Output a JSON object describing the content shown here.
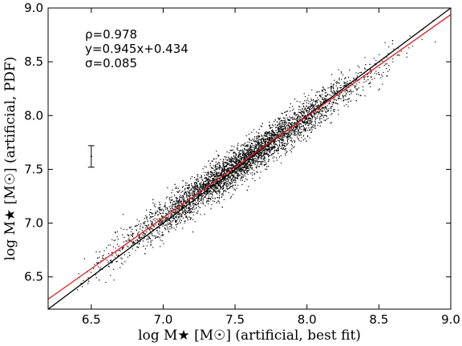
{
  "chart_data": {
    "type": "scatter",
    "xlabel": "log M★ [M☉] (artificial, best fit)",
    "ylabel": "log M★ [M☉] (artificial, PDF)",
    "xlim": [
      6.2,
      9.0
    ],
    "ylim": [
      6.2,
      9.0
    ],
    "xticks": [
      "6.5",
      "7.0",
      "7.5",
      "8.0",
      "8.5",
      "9.0"
    ],
    "yticks": [
      "6.5",
      "7.0",
      "7.5",
      "8.0",
      "8.5",
      "9.0"
    ],
    "xtick_values": [
      6.5,
      7.0,
      7.5,
      8.0,
      8.5,
      9.0
    ],
    "ytick_values": [
      6.5,
      7.0,
      7.5,
      8.0,
      8.5,
      9.0
    ],
    "annotations": [
      "ρ=0.978",
      "y=0.945x+0.434",
      "σ=0.085"
    ],
    "lines": [
      {
        "name": "one-to-one",
        "color": "#000000",
        "slope": 1.0,
        "intercept": 0.0
      },
      {
        "name": "fit",
        "color": "#e41a1c",
        "slope": 0.945,
        "intercept": 0.434
      }
    ],
    "error_bar": {
      "x": 6.5,
      "y": 7.62,
      "yerr": 0.1
    },
    "scatter": {
      "color": "#000000",
      "n_points": 4500,
      "x_mean": 7.55,
      "x_sd": 0.42,
      "x_range": [
        6.38,
        8.9
      ],
      "y_relation": "y = 0.945x + 0.434",
      "y_scatter_sd": 0.085
    },
    "grid": false
  }
}
